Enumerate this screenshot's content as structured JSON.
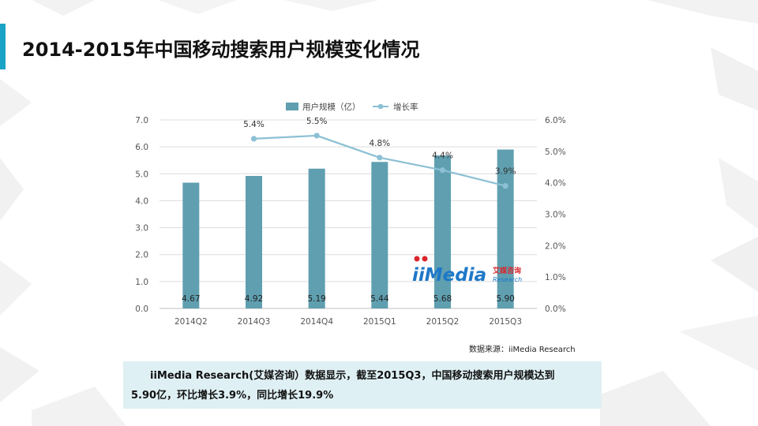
{
  "slide": {
    "title": "2014-2015年中国移动搜索用户规模变化情况",
    "source": "数据来源：iiMedia Research",
    "summary_line1": "iiMedia  Research(艾媒咨询）数据显示，截至2015Q3，中国移动搜索用户规模达到",
    "summary_line2": "5.90亿，环比增长3.9%，同比增长19.9%"
  },
  "watermark": {
    "logo_text": "iiMedia",
    "cn_text": "艾媒咨询",
    "en_text": "Research"
  },
  "colors": {
    "bar": "#5f9fb0",
    "line": "#8cc0d4",
    "accent": "#1aa3c4",
    "summary_bg": "#dff0f4",
    "logo_red": "#d9252b",
    "logo_blue": "#1e78c8"
  },
  "chart_data": {
    "type": "bar",
    "categories": [
      "2014Q2",
      "2014Q3",
      "2014Q4",
      "2015Q1",
      "2015Q2",
      "2015Q3"
    ],
    "series": [
      {
        "name": "用户规模（亿）",
        "type": "bar",
        "axis": "left",
        "values": [
          4.67,
          4.92,
          5.19,
          5.44,
          5.68,
          5.9
        ],
        "labels": [
          "4.67",
          "4.92",
          "5.19",
          "5.44",
          "5.68",
          "5.90"
        ]
      },
      {
        "name": "增长率",
        "type": "line",
        "axis": "right",
        "values": [
          null,
          5.4,
          5.5,
          4.8,
          4.4,
          3.9
        ],
        "labels": [
          "",
          "5.4%",
          "5.5%",
          "4.8%",
          "4.4%",
          "3.9%"
        ]
      }
    ],
    "y_left": {
      "min": 0,
      "max": 7,
      "ticks": [
        "0.0",
        "1.0",
        "2.0",
        "3.0",
        "4.0",
        "5.0",
        "6.0",
        "7.0"
      ]
    },
    "y_right": {
      "min": 0,
      "max": 6,
      "ticks": [
        "0.0%",
        "1.0%",
        "2.0%",
        "3.0%",
        "4.0%",
        "5.0%",
        "6.0%"
      ]
    },
    "legend_position": "top",
    "grid": true
  }
}
